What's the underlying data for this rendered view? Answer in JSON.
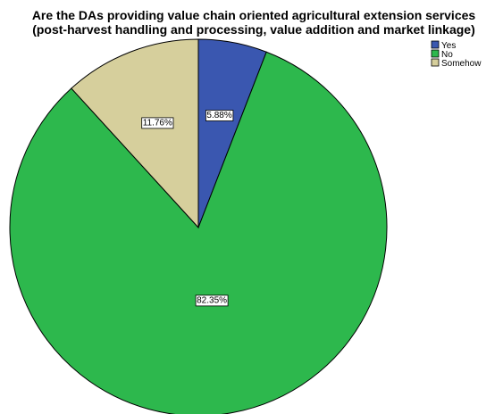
{
  "chart_data": {
    "type": "pie",
    "title": "Are the DAs providing value chain oriented agricultural extension services",
    "subtitle": "(post-harvest handling and processing, value addition and market linkage)",
    "categories": [
      "Yes",
      "No",
      "Somehow"
    ],
    "values": [
      5.88,
      82.35,
      11.76
    ],
    "data_labels": [
      "5.88%",
      "82.35%",
      "11.76%"
    ],
    "colors": [
      "#3a57b0",
      "#2db84d",
      "#d6cf9c"
    ],
    "legend": {
      "placement": "top-right",
      "entries": [
        "Yes",
        "No",
        "Somehow"
      ]
    },
    "start_angle": "12 o'clock",
    "direction": "clockwise"
  }
}
